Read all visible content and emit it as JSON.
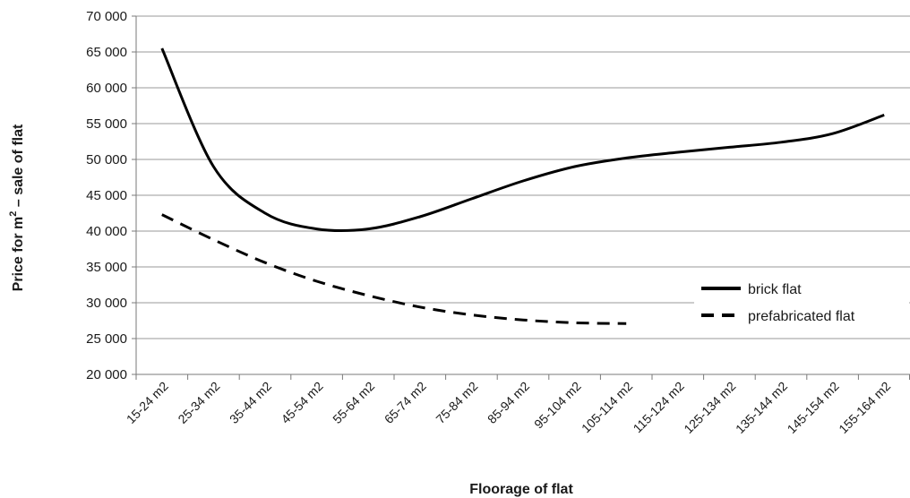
{
  "chart_data": {
    "type": "line",
    "xlabel": "Floorage of flat",
    "ylabel_main": "Price for m",
    "ylabel_sup": "2",
    "ylabel_rest": " – sale of flat",
    "ylim": [
      20000,
      70000
    ],
    "yticks": [
      20000,
      25000,
      30000,
      35000,
      40000,
      45000,
      50000,
      55000,
      60000,
      65000,
      70000
    ],
    "ytick_labels": [
      "20 000",
      "25 000",
      "30 000",
      "35 000",
      "40 000",
      "45 000",
      "50 000",
      "55 000",
      "60 000",
      "65 000",
      "70 000"
    ],
    "categories": [
      "15-24 m2",
      "25-34 m2",
      "35-44 m2",
      "45-54 m2",
      "55-64 m2",
      "65-74 m2",
      "75-84 m2",
      "85-94 m2",
      "95-104 m2",
      "105-114 m2",
      "115-124 m2",
      "125-134 m2",
      "135-144 m2",
      "145-154 m2",
      "155-164 m2"
    ],
    "grid": true,
    "legend_position": "right",
    "series": [
      {
        "name": "brick flat",
        "style": "solid",
        "color": "#000000",
        "values": [
          65500,
          49000,
          42500,
          40300,
          40300,
          42000,
          44500,
          47000,
          49000,
          50200,
          51000,
          51700,
          52400,
          53600,
          56200
        ]
      },
      {
        "name": "prefabricated flat",
        "style": "dashed",
        "color": "#000000",
        "values": [
          42300,
          38800,
          35600,
          33000,
          31000,
          29400,
          28300,
          27600,
          27200,
          27100,
          null,
          null,
          null,
          null,
          null
        ]
      }
    ]
  }
}
